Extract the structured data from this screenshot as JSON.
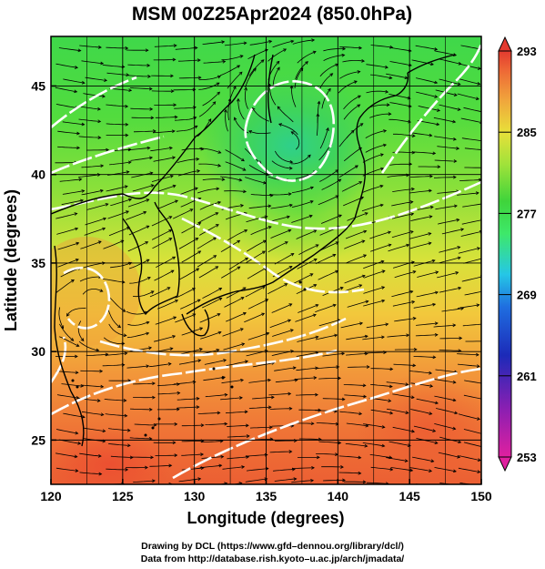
{
  "title": "MSM 00Z25Apr2024 (850.0hPa)",
  "map": {
    "xlabel": "Longitude (degrees)",
    "ylabel": "Latitude  (degrees)",
    "lon_range": [
      120,
      150
    ],
    "lat_range": [
      22.5,
      47.8
    ],
    "lon_ticks": [
      "120",
      "125",
      "130",
      "135",
      "140",
      "145",
      "150"
    ],
    "lat_ticks": [
      "25",
      "30",
      "35",
      "40",
      "45"
    ],
    "grid": true,
    "contour_color": "#ffffff",
    "streamline_color": "#000000"
  },
  "colorbar": {
    "ticks": [
      "293",
      "285",
      "277",
      "269",
      "261",
      "253"
    ],
    "min": 253,
    "max": 293,
    "colors": [
      "#e0209f",
      "#8a1fb2",
      "#1c2ab8",
      "#1f6ee0",
      "#25c7e6",
      "#3ee86a",
      "#3fd43b",
      "#9fe23a",
      "#e8e03a",
      "#f0a43c",
      "#ee6a36",
      "#e33a2f"
    ]
  },
  "credits": {
    "line1": "Drawing by DCL (https://www.gfd–dennou.org/library/dcl/)",
    "line2": "Data from http://database.rish.kyoto–u.ac.jp/arch/jmadata/"
  }
}
